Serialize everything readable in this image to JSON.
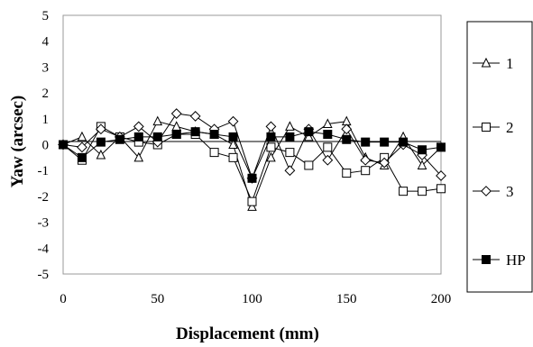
{
  "chart_data": {
    "type": "line",
    "title": "",
    "xlabel": "Displacement (mm)",
    "ylabel": "Yaw (arcsec)",
    "xlim": [
      0,
      200
    ],
    "ylim": [
      -5,
      5
    ],
    "x_ticks": [
      0,
      50,
      100,
      150,
      200
    ],
    "y_ticks": [
      5,
      4,
      3,
      2,
      1,
      0,
      -1,
      -2,
      -3,
      -4,
      -5
    ],
    "grid": false,
    "legend_position": "right",
    "x": [
      0,
      10,
      20,
      30,
      40,
      50,
      60,
      70,
      80,
      90,
      100,
      110,
      120,
      130,
      140,
      150,
      160,
      170,
      180,
      190,
      200
    ],
    "series": [
      {
        "name": "1",
        "marker": "triangle",
        "values": [
          0,
          0.3,
          -0.4,
          0.3,
          -0.5,
          0.9,
          0.7,
          0.5,
          0.4,
          0.0,
          -2.4,
          -0.5,
          0.7,
          0.3,
          0.8,
          0.9,
          -0.5,
          -0.8,
          0.3,
          -0.8,
          -0.1
        ]
      },
      {
        "name": "2",
        "marker": "square",
        "values": [
          0,
          -0.6,
          0.7,
          0.3,
          0.1,
          0.0,
          0.4,
          0.4,
          -0.3,
          -0.5,
          -2.2,
          -0.1,
          -0.3,
          -0.8,
          -0.1,
          -1.1,
          -1.0,
          -0.5,
          -1.8,
          -1.8,
          -1.7
        ]
      },
      {
        "name": "3",
        "marker": "diamond",
        "values": [
          0,
          -0.1,
          0.6,
          0.3,
          0.7,
          0.1,
          1.2,
          1.1,
          0.6,
          0.9,
          -1.3,
          0.7,
          -1.0,
          0.6,
          -0.6,
          0.6,
          -0.6,
          -0.7,
          0.0,
          -0.4,
          -1.2
        ]
      },
      {
        "name": "HP",
        "marker": "filled-square",
        "values": [
          0,
          -0.5,
          0.1,
          0.2,
          0.3,
          0.3,
          0.4,
          0.5,
          0.4,
          0.3,
          -1.3,
          0.3,
          0.3,
          0.5,
          0.4,
          0.2,
          0.1,
          0.1,
          0.1,
          -0.2,
          -0.1
        ]
      }
    ]
  }
}
